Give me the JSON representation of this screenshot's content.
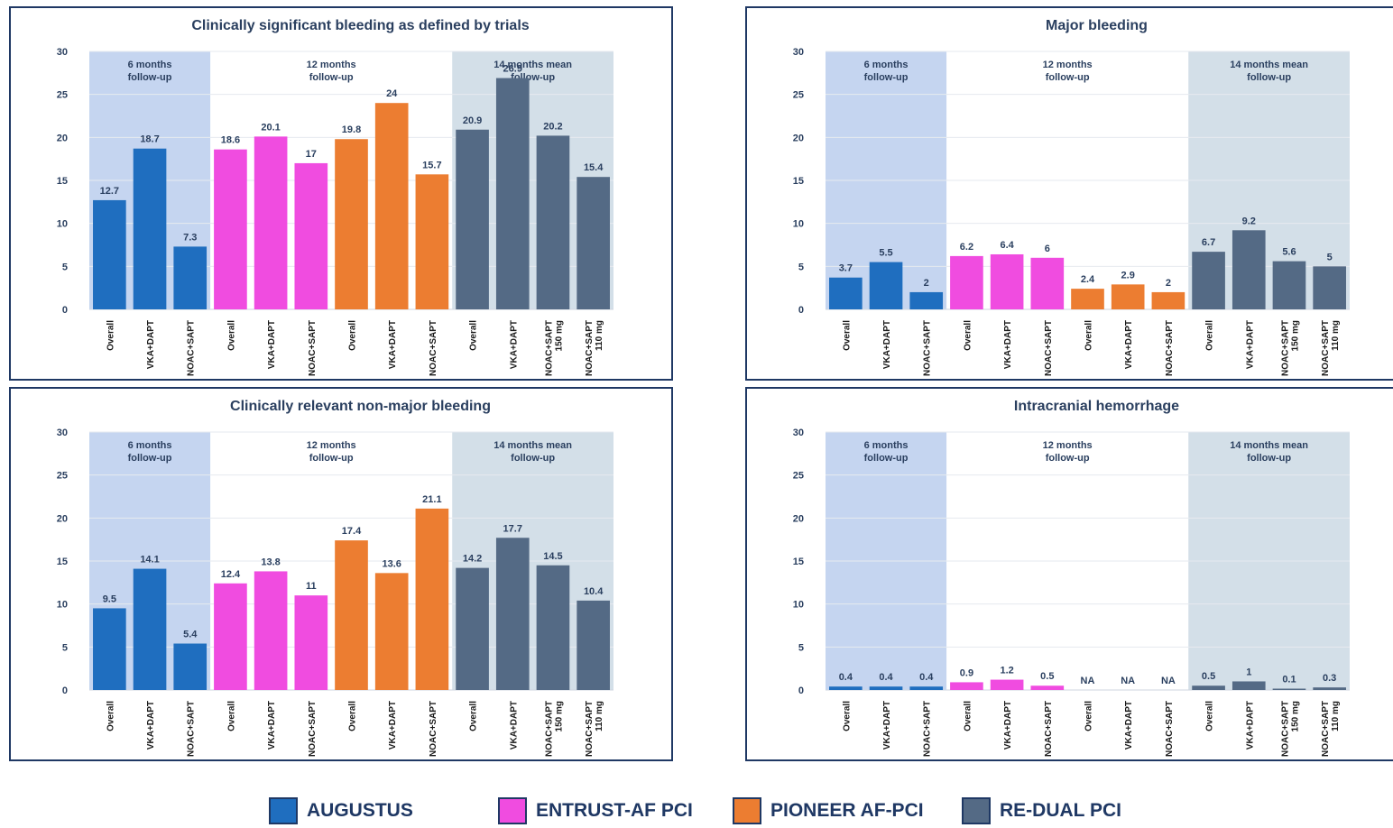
{
  "colors": {
    "AUGUSTUS": "#1f6ebf",
    "ENTRUST-AF PCI": "#f04ce0",
    "PIONEER AF-PCI": "#ec7d31",
    "RE-DUAL PCI": "#546a85",
    "band_6m": "#c5d5f0",
    "band_14m": "#d3dfe8",
    "text": "#2a3f5f"
  },
  "legend": [
    {
      "name": "AUGUSTUS",
      "color": "#1f6ebf"
    },
    {
      "name": "ENTRUST-AF PCI",
      "color": "#f04ce0"
    },
    {
      "name": "PIONEER AF-PCI",
      "color": "#ec7d31"
    },
    {
      "name": "RE-DUAL PCI",
      "color": "#546a85"
    }
  ],
  "chart_data": [
    {
      "type": "bar",
      "title": "Clinically significant bleeding as defined by trials",
      "ylim": [
        0,
        30
      ],
      "yticks": [
        0,
        5,
        10,
        15,
        20,
        25,
        30
      ],
      "bands": [
        {
          "label": [
            "6 months",
            "follow-up"
          ],
          "style": "6m"
        },
        {
          "label": [
            "12 months",
            "follow-up"
          ],
          "style": "none"
        },
        {
          "label": [
            "14 months mean",
            "follow-up"
          ],
          "style": "14m"
        }
      ],
      "categories": [
        [
          "Overall"
        ],
        [
          "VKA+DAPT"
        ],
        [
          "NOAC+SAPT"
        ],
        [
          "Overall"
        ],
        [
          "VKA+DAPT"
        ],
        [
          "NOAC+SAPT"
        ],
        [
          "Overall"
        ],
        [
          "VKA+DAPT"
        ],
        [
          "NOAC+SAPT"
        ],
        [
          "Overall"
        ],
        [
          "VKA+DAPT"
        ],
        [
          "NOAC+SAPT",
          "150 mg"
        ],
        [
          "NOAC+SAPT",
          "110 mg"
        ]
      ],
      "trial": [
        "AUGUSTUS",
        "AUGUSTUS",
        "AUGUSTUS",
        "ENTRUST-AF PCI",
        "ENTRUST-AF PCI",
        "ENTRUST-AF PCI",
        "PIONEER AF-PCI",
        "PIONEER AF-PCI",
        "PIONEER AF-PCI",
        "RE-DUAL PCI",
        "RE-DUAL PCI",
        "RE-DUAL PCI",
        "RE-DUAL PCI"
      ],
      "values": [
        12.7,
        18.7,
        7.3,
        18.6,
        20.1,
        17,
        19.8,
        24,
        15.7,
        20.9,
        26.9,
        20.2,
        15.4
      ],
      "labels": [
        "12.7",
        "18.7",
        "7.3",
        "18.6",
        "20.1",
        "17",
        "19.8",
        "24",
        "15.7",
        "20.9",
        "26.9",
        "20.2",
        "15.4"
      ]
    },
    {
      "type": "bar",
      "title": "Major bleeding",
      "ylim": [
        0,
        30
      ],
      "yticks": [
        0,
        5,
        10,
        15,
        20,
        25,
        30
      ],
      "bands": [
        {
          "label": [
            "6 months",
            "follow-up"
          ],
          "style": "6m"
        },
        {
          "label": [
            "12 months",
            "follow-up"
          ],
          "style": "none"
        },
        {
          "label": [
            "14 months mean",
            "follow-up"
          ],
          "style": "14m"
        }
      ],
      "categories": [
        [
          "Overall"
        ],
        [
          "VKA+DAPT"
        ],
        [
          "NOAC+SAPT"
        ],
        [
          "Overall"
        ],
        [
          "VKA+DAPT"
        ],
        [
          "NOAC+SAPT"
        ],
        [
          "Overall"
        ],
        [
          "VKA+DAPT"
        ],
        [
          "NOAC+SAPT"
        ],
        [
          "Overall"
        ],
        [
          "VKA+DAPT"
        ],
        [
          "NOAC+SAPT",
          "150 mg"
        ],
        [
          "NOAC+SAPT",
          "110 mg"
        ]
      ],
      "trial": [
        "AUGUSTUS",
        "AUGUSTUS",
        "AUGUSTUS",
        "ENTRUST-AF PCI",
        "ENTRUST-AF PCI",
        "ENTRUST-AF PCI",
        "PIONEER AF-PCI",
        "PIONEER AF-PCI",
        "PIONEER AF-PCI",
        "RE-DUAL PCI",
        "RE-DUAL PCI",
        "RE-DUAL PCI",
        "RE-DUAL PCI"
      ],
      "values": [
        3.7,
        5.5,
        2,
        6.2,
        6.4,
        6,
        2.4,
        2.9,
        2,
        6.7,
        9.2,
        5.6,
        5
      ],
      "labels": [
        "3.7",
        "5.5",
        "2",
        "6.2",
        "6.4",
        "6",
        "2.4",
        "2.9",
        "2",
        "6.7",
        "9.2",
        "5.6",
        "5"
      ]
    },
    {
      "type": "bar",
      "title": "Clinically relevant non-major bleeding",
      "ylim": [
        0,
        30
      ],
      "yticks": [
        0,
        5,
        10,
        15,
        20,
        25,
        30
      ],
      "bands": [
        {
          "label": [
            "6 months",
            "follow-up"
          ],
          "style": "6m"
        },
        {
          "label": [
            "12 months",
            "follow-up"
          ],
          "style": "none"
        },
        {
          "label": [
            "14 months mean",
            "follow-up"
          ],
          "style": "14m"
        }
      ],
      "categories": [
        [
          "Overall"
        ],
        [
          "VKA+DAPT"
        ],
        [
          "NOAC+SAPT"
        ],
        [
          "Overall"
        ],
        [
          "VKA+DAPT"
        ],
        [
          "NOAC+SAPT"
        ],
        [
          "Overall"
        ],
        [
          "VKA+DAPT"
        ],
        [
          "NOAC+SAPT"
        ],
        [
          "Overall"
        ],
        [
          "VKA+DAPT"
        ],
        [
          "NOAC+SAPT",
          "150 mg"
        ],
        [
          "NOAC+SAPT",
          "110 mg"
        ]
      ],
      "trial": [
        "AUGUSTUS",
        "AUGUSTUS",
        "AUGUSTUS",
        "ENTRUST-AF PCI",
        "ENTRUST-AF PCI",
        "ENTRUST-AF PCI",
        "PIONEER AF-PCI",
        "PIONEER AF-PCI",
        "PIONEER AF-PCI",
        "RE-DUAL PCI",
        "RE-DUAL PCI",
        "RE-DUAL PCI",
        "RE-DUAL PCI"
      ],
      "values": [
        9.5,
        14.1,
        5.4,
        12.4,
        13.8,
        11,
        17.4,
        13.6,
        21.1,
        14.2,
        17.7,
        14.5,
        10.4
      ],
      "labels": [
        "9.5",
        "14.1",
        "5.4",
        "12.4",
        "13.8",
        "11",
        "17.4",
        "13.6",
        "21.1",
        "14.2",
        "17.7",
        "14.5",
        "10.4"
      ]
    },
    {
      "type": "bar",
      "title": "Intracranial hemorrhage",
      "ylim": [
        0,
        30
      ],
      "yticks": [
        0,
        5,
        10,
        15,
        20,
        25,
        30
      ],
      "bands": [
        {
          "label": [
            "6 months",
            "follow-up"
          ],
          "style": "6m"
        },
        {
          "label": [
            "12 months",
            "follow-up"
          ],
          "style": "none"
        },
        {
          "label": [
            "14 months mean",
            "follow-up"
          ],
          "style": "14m"
        }
      ],
      "categories": [
        [
          "Overall"
        ],
        [
          "VKA+DAPT"
        ],
        [
          "NOAC+SAPT"
        ],
        [
          "Overall"
        ],
        [
          "VKA+DAPT"
        ],
        [
          "NOAC+SAPT"
        ],
        [
          "Overall"
        ],
        [
          "VKA+DAPT"
        ],
        [
          "NOAC+SAPT"
        ],
        [
          "Overall"
        ],
        [
          "VKA+DAPT"
        ],
        [
          "NOAC+SAPT",
          "150 mg"
        ],
        [
          "NOAC+SAPT",
          "110 mg"
        ]
      ],
      "trial": [
        "AUGUSTUS",
        "AUGUSTUS",
        "AUGUSTUS",
        "ENTRUST-AF PCI",
        "ENTRUST-AF PCI",
        "ENTRUST-AF PCI",
        "PIONEER AF-PCI",
        "PIONEER AF-PCI",
        "PIONEER AF-PCI",
        "RE-DUAL PCI",
        "RE-DUAL PCI",
        "RE-DUAL PCI",
        "RE-DUAL PCI"
      ],
      "values": [
        0.4,
        0.4,
        0.4,
        0.9,
        1.2,
        0.5,
        null,
        null,
        null,
        0.5,
        1,
        0.1,
        0.3
      ],
      "labels": [
        "0.4",
        "0.4",
        "0.4",
        "0.9",
        "1.2",
        "0.5",
        "NA",
        "NA",
        "NA",
        "0.5",
        "1",
        "0.1",
        "0.3"
      ]
    }
  ]
}
